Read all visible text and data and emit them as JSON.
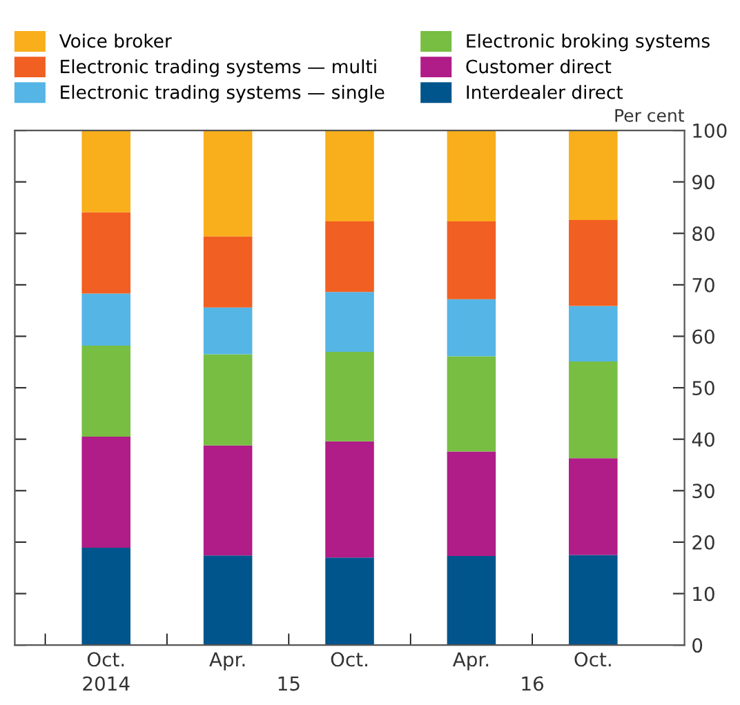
{
  "chart_data": {
    "type": "bar",
    "stacked": true,
    "ylabel": "Per cent",
    "categories": [
      "Oct.",
      "Apr.",
      "Oct.",
      "Apr.",
      "Oct."
    ],
    "annotations": [
      "2014",
      "15",
      "16"
    ],
    "series": [
      {
        "name": "Interdealer direct",
        "color": "#00558c",
        "values": [
          18.9,
          17.4,
          17.0,
          17.3,
          17.5
        ]
      },
      {
        "name": "Customer direct",
        "color": "#b01c88",
        "values": [
          21.6,
          21.4,
          22.6,
          20.3,
          18.8
        ]
      },
      {
        "name": "Electronic broking systems",
        "color": "#77be43",
        "values": [
          17.7,
          17.7,
          17.4,
          18.5,
          18.8
        ]
      },
      {
        "name": "Electronic trading systems — single",
        "color": "#55b5e5",
        "values": [
          10.1,
          9.1,
          11.6,
          11.1,
          10.8
        ]
      },
      {
        "name": "Electronic trading systems — multi",
        "color": "#f15f22",
        "values": [
          15.8,
          13.8,
          13.7,
          15.1,
          16.7
        ]
      },
      {
        "name": "Voice broker",
        "color": "#f9ae1b",
        "values": [
          15.9,
          20.6,
          17.7,
          17.7,
          17.4
        ]
      }
    ],
    "ylim": [
      0,
      100
    ],
    "yticks": [
      0,
      10,
      20,
      30,
      40,
      50,
      60,
      70,
      80,
      90,
      100
    ],
    "grid": false,
    "legend": "top"
  }
}
